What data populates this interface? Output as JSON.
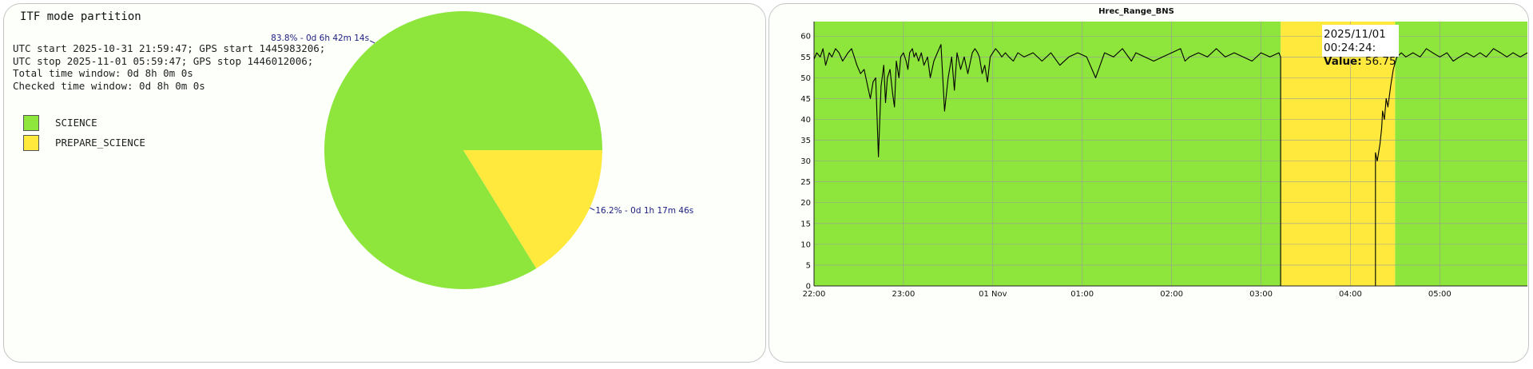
{
  "partition": {
    "title": "ITF mode partition",
    "info_lines": [
      "UTC start 2025-10-31 21:59:47; GPS start 1445983206;",
      "UTC stop 2025-11-01 05:59:47; GPS stop 1446012006;",
      "Total time window: 0d 8h 0m 0s",
      "Checked time window: 0d 8h 0m 0s"
    ],
    "legend": [
      {
        "label": "SCIENCE",
        "color": "#8ee63d"
      },
      {
        "label": "PREPARE_SCIENCE",
        "color": "#ffe93d"
      }
    ]
  },
  "range_chart": {
    "title": "Hrec_Range_BNS",
    "tooltip": {
      "time": "2025/11/01 00:24:24:",
      "value_label": "Value:",
      "value": "56.75"
    }
  },
  "colors": {
    "science": "#8ee63d",
    "prepare_science": "#ffe93d",
    "grid": "#9a9a9a",
    "line": "#000000"
  },
  "chart_data": [
    {
      "type": "pie",
      "slices": [
        {
          "name": "SCIENCE",
          "percent": 83.8,
          "label": "83.8% - 0d 6h 42m 14s",
          "color": "#8ee63d"
        },
        {
          "name": "PREPARE_SCIENCE",
          "percent": 16.2,
          "label": "16.2% - 0d 1h 17m 46s",
          "color": "#ffe93d"
        }
      ]
    },
    {
      "type": "line",
      "title": "Hrec_Range_BNS",
      "x_unit": "hours after 2025-10-31 22:00 UTC",
      "xlim": [
        0,
        7.98
      ],
      "ylim": [
        0,
        63.5
      ],
      "x_ticks": [
        {
          "label": "22:00",
          "x": 0
        },
        {
          "label": "23:00",
          "x": 1
        },
        {
          "label": "01 Nov",
          "x": 2
        },
        {
          "label": "01:00",
          "x": 3
        },
        {
          "label": "02:00",
          "x": 4
        },
        {
          "label": "03:00",
          "x": 5
        },
        {
          "label": "04:00",
          "x": 6
        },
        {
          "label": "05:00",
          "x": 7
        }
      ],
      "y_ticks": [
        0,
        5,
        10,
        15,
        20,
        25,
        30,
        35,
        40,
        45,
        50,
        55,
        60
      ],
      "grid": true,
      "bands": [
        {
          "name": "SCIENCE",
          "x0": 0,
          "x1": 5.22,
          "color": "#8ee63d"
        },
        {
          "name": "PREPARE_SCIENCE",
          "x0": 5.22,
          "x1": 6.5,
          "color": "#ffe93d"
        },
        {
          "name": "SCIENCE",
          "x0": 6.5,
          "x1": 7.98,
          "color": "#8ee63d"
        }
      ],
      "series": [
        {
          "x": [
            0,
            0.03,
            0.07,
            0.1,
            0.13,
            0.17,
            0.2,
            0.24,
            0.28,
            0.32,
            0.35,
            0.38,
            0.42,
            0.45,
            0.48,
            0.52,
            0.56,
            0.6,
            0.63,
            0.66,
            0.69,
            0.72,
            0.75,
            0.78,
            0.8,
            0.82,
            0.85,
            0.88,
            0.9,
            0.92,
            0.95,
            0.97,
            1.0,
            1.03,
            1.05,
            1.07,
            1.1,
            1.12,
            1.14,
            1.17,
            1.2,
            1.23,
            1.27,
            1.3,
            1.34,
            1.38,
            1.42,
            1.46,
            1.5,
            1.54,
            1.57,
            1.6,
            1.64,
            1.68,
            1.72,
            1.77,
            1.8,
            1.83,
            1.85,
            1.88,
            1.91,
            1.94,
            1.97,
            2.0,
            2.03,
            2.07,
            2.1,
            2.14,
            2.18,
            2.23,
            2.28,
            2.35,
            2.45,
            2.55,
            2.65,
            2.75,
            2.85,
            2.95,
            3.05,
            3.15,
            3.2,
            3.25,
            3.35,
            3.45,
            3.55,
            3.6,
            3.7,
            3.8,
            3.9,
            4.0,
            4.1,
            4.15,
            4.2,
            4.3,
            4.4,
            4.5,
            4.6,
            4.7,
            4.8,
            4.9,
            5.0,
            5.1,
            5.2,
            5.22,
            5.22
          ],
          "y": [
            54.5,
            56,
            55,
            57,
            53,
            56,
            55,
            57,
            56,
            54,
            55,
            56,
            57,
            55,
            53,
            51,
            52,
            48,
            45,
            49,
            50,
            31,
            48,
            53,
            44,
            50,
            52,
            46,
            43,
            54,
            50,
            55,
            56,
            54,
            52,
            56,
            57,
            55,
            56,
            54,
            56,
            53,
            55,
            50,
            54,
            56,
            58,
            42,
            50,
            55,
            47,
            56,
            52,
            55,
            51,
            56,
            57,
            56,
            55,
            51,
            53,
            49,
            55,
            56,
            57,
            56,
            55,
            56,
            55,
            54,
            56,
            55,
            56,
            54,
            56,
            53,
            55,
            56,
            55,
            50,
            53,
            56,
            55,
            57,
            54,
            56,
            55,
            54,
            55,
            56,
            57,
            54,
            55,
            56,
            55,
            57,
            55,
            56,
            55,
            54,
            56,
            55,
            56,
            55,
            0
          ]
        },
        {
          "x": [
            6.28,
            6.28,
            6.3,
            6.33,
            6.35,
            6.36,
            6.38,
            6.4,
            6.42,
            6.45,
            6.48,
            6.52,
            6.57,
            6.62,
            6.7,
            6.78,
            6.85,
            6.92,
            7.0,
            7.08,
            7.15,
            7.22,
            7.3,
            7.38,
            7.45,
            7.52,
            7.6,
            7.68,
            7.75,
            7.82,
            7.9,
            7.98
          ],
          "y": [
            0,
            32,
            30,
            34,
            38,
            42,
            40,
            45,
            43,
            48,
            52,
            55,
            56,
            55,
            56,
            55,
            57,
            56,
            55,
            56,
            54,
            55,
            56,
            55,
            56,
            55,
            57,
            56,
            55,
            56,
            55,
            56
          ]
        }
      ]
    }
  ]
}
